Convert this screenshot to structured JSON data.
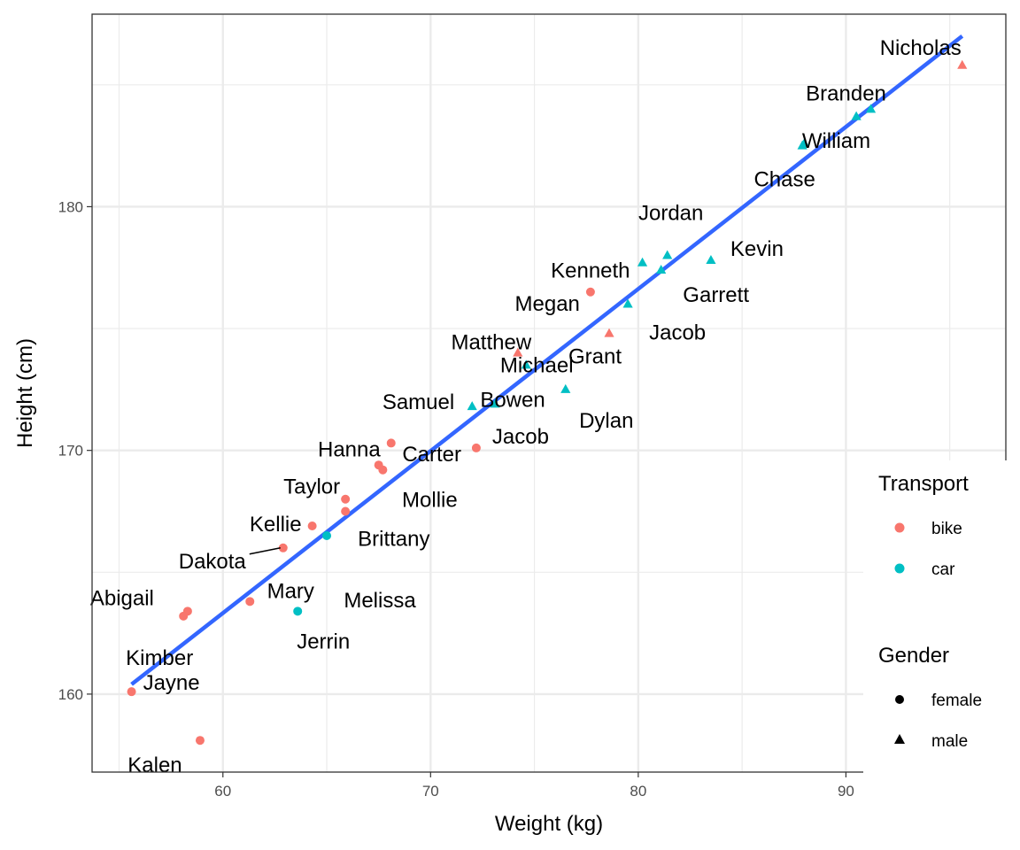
{
  "chart_data": {
    "type": "scatter",
    "xlabel": "Weight (kg)",
    "ylabel": "Height (cm)",
    "xlim": [
      53.7,
      97.7
    ],
    "ylim": [
      156.8,
      187.9
    ],
    "x_ticks": [
      60,
      70,
      80,
      90
    ],
    "y_ticks": [
      160,
      170,
      180
    ],
    "grid": true,
    "colors": {
      "bike": "#F8766D",
      "car": "#00BFC4",
      "fit": "#3366FF"
    },
    "trend_line": {
      "x": [
        55.6,
        95.6
      ],
      "y": [
        160.4,
        187.0
      ]
    },
    "legend_placement": "right",
    "legend": {
      "transport": {
        "title": "Transport",
        "items": [
          "bike",
          "car"
        ]
      },
      "gender": {
        "title": "Gender",
        "items": [
          "female",
          "male"
        ]
      }
    },
    "points": [
      {
        "name": "Nicholas",
        "x": 95.6,
        "y": 185.8,
        "transport": "bike",
        "gender": "male"
      },
      {
        "name": "Branden",
        "x": 91.2,
        "y": 184.0,
        "transport": "car",
        "gender": "male"
      },
      {
        "name": "",
        "x": 90.5,
        "y": 183.7,
        "transport": "car",
        "gender": "male"
      },
      {
        "name": "William",
        "x": 88.0,
        "y": 182.6,
        "transport": "car",
        "gender": "male"
      },
      {
        "name": "Chase",
        "x": 87.9,
        "y": 182.5,
        "transport": "car",
        "gender": "male"
      },
      {
        "name": "Jordan",
        "x": 81.4,
        "y": 178.0,
        "transport": "car",
        "gender": "male"
      },
      {
        "name": "Kevin",
        "x": 83.5,
        "y": 177.8,
        "transport": "car",
        "gender": "male"
      },
      {
        "name": "Kenneth",
        "x": 80.2,
        "y": 177.7,
        "transport": "car",
        "gender": "male"
      },
      {
        "name": "Garrett",
        "x": 81.1,
        "y": 177.4,
        "transport": "car",
        "gender": "male"
      },
      {
        "name": "Megan",
        "x": 77.7,
        "y": 176.5,
        "transport": "bike",
        "gender": "female"
      },
      {
        "name": "Jacob",
        "x": 79.5,
        "y": 176.0,
        "transport": "car",
        "gender": "male"
      },
      {
        "name": "Grant",
        "x": 78.6,
        "y": 174.8,
        "transport": "bike",
        "gender": "male"
      },
      {
        "name": "Matthew",
        "x": 74.2,
        "y": 174.0,
        "transport": "bike",
        "gender": "male"
      },
      {
        "name": "Michael",
        "x": 74.6,
        "y": 173.5,
        "transport": "car",
        "gender": "male"
      },
      {
        "name": "Dylan",
        "x": 76.5,
        "y": 172.5,
        "transport": "car",
        "gender": "male"
      },
      {
        "name": "Samuel",
        "x": 72.0,
        "y": 171.8,
        "transport": "car",
        "gender": "male"
      },
      {
        "name": "Bowen",
        "x": 73.1,
        "y": 171.9,
        "transport": "car",
        "gender": "male"
      },
      {
        "name": "Jacob",
        "x": 72.2,
        "y": 170.1,
        "transport": "bike",
        "gender": "female"
      },
      {
        "name": "Hanna",
        "x": 68.1,
        "y": 170.3,
        "transport": "bike",
        "gender": "female"
      },
      {
        "name": "Carter",
        "x": 67.5,
        "y": 169.4,
        "transport": "bike",
        "gender": "female"
      },
      {
        "name": "Mollie",
        "x": 67.7,
        "y": 169.2,
        "transport": "bike",
        "gender": "female"
      },
      {
        "name": "Taylor",
        "x": 65.9,
        "y": 168.0,
        "transport": "bike",
        "gender": "female"
      },
      {
        "name": "Brittany",
        "x": 65.9,
        "y": 167.5,
        "transport": "bike",
        "gender": "female"
      },
      {
        "name": "Kellie",
        "x": 64.3,
        "y": 166.9,
        "transport": "bike",
        "gender": "female"
      },
      {
        "name": "Melissa",
        "x": 65.0,
        "y": 166.5,
        "transport": "car",
        "gender": "female"
      },
      {
        "name": "Dakota",
        "x": 62.9,
        "y": 166.0,
        "transport": "bike",
        "gender": "female"
      },
      {
        "name": "Mary",
        "x": 61.3,
        "y": 163.8,
        "transport": "bike",
        "gender": "female"
      },
      {
        "name": "Jerrin",
        "x": 63.6,
        "y": 163.4,
        "transport": "car",
        "gender": "female"
      },
      {
        "name": "Abigail",
        "x": 58.3,
        "y": 163.4,
        "transport": "bike",
        "gender": "female"
      },
      {
        "name": "Kimber",
        "x": 58.1,
        "y": 163.2,
        "transport": "bike",
        "gender": "female"
      },
      {
        "name": "Jayne",
        "x": 55.6,
        "y": 160.1,
        "transport": "bike",
        "gender": "female"
      },
      {
        "name": "Kalen",
        "x": 58.9,
        "y": 158.1,
        "transport": "bike",
        "gender": "female"
      }
    ]
  }
}
